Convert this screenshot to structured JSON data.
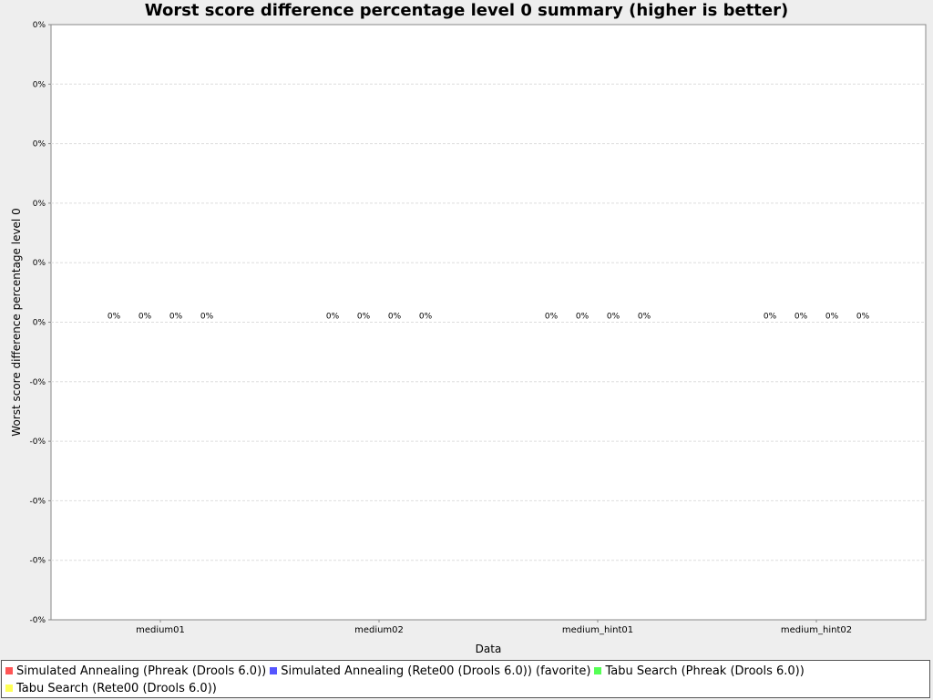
{
  "chart_data": {
    "type": "bar",
    "title": "Worst score difference percentage level 0 summary (higher is better)",
    "xlabel": "Data",
    "ylabel": "Worst score difference percentage level 0",
    "categories": [
      "medium01",
      "medium02",
      "medium_hint01",
      "medium_hint02"
    ],
    "y_tick_labels": [
      "0%",
      "0%",
      "0%",
      "0%",
      "0%",
      "0%",
      "-0%",
      "-0%",
      "-0%",
      "-0%",
      "-0%"
    ],
    "ylim": [
      -0.005,
      0.005
    ],
    "grid": true,
    "legend_position": "bottom",
    "series": [
      {
        "name": "Simulated Annealing (Phreak (Drools 6.0))",
        "color": "#ff5555",
        "values": [
          0,
          0,
          0,
          0
        ],
        "labels": [
          "0%",
          "0%",
          "0%",
          "0%"
        ]
      },
      {
        "name": "Simulated Annealing (Rete00 (Drools 6.0)) (favorite)",
        "color": "#5555ff",
        "values": [
          0,
          0,
          0,
          0
        ],
        "labels": [
          "0%",
          "0%",
          "0%",
          "0%"
        ]
      },
      {
        "name": "Tabu Search (Phreak (Drools 6.0))",
        "color": "#55ff55",
        "values": [
          0,
          0,
          0,
          0
        ],
        "labels": [
          "0%",
          "0%",
          "0%",
          "0%"
        ]
      },
      {
        "name": "Tabu Search (Rete00 (Drools 6.0))",
        "color": "#ffff55",
        "values": [
          0,
          0,
          0,
          0
        ],
        "labels": [
          "0%",
          "0%",
          "0%",
          "0%"
        ]
      }
    ]
  }
}
